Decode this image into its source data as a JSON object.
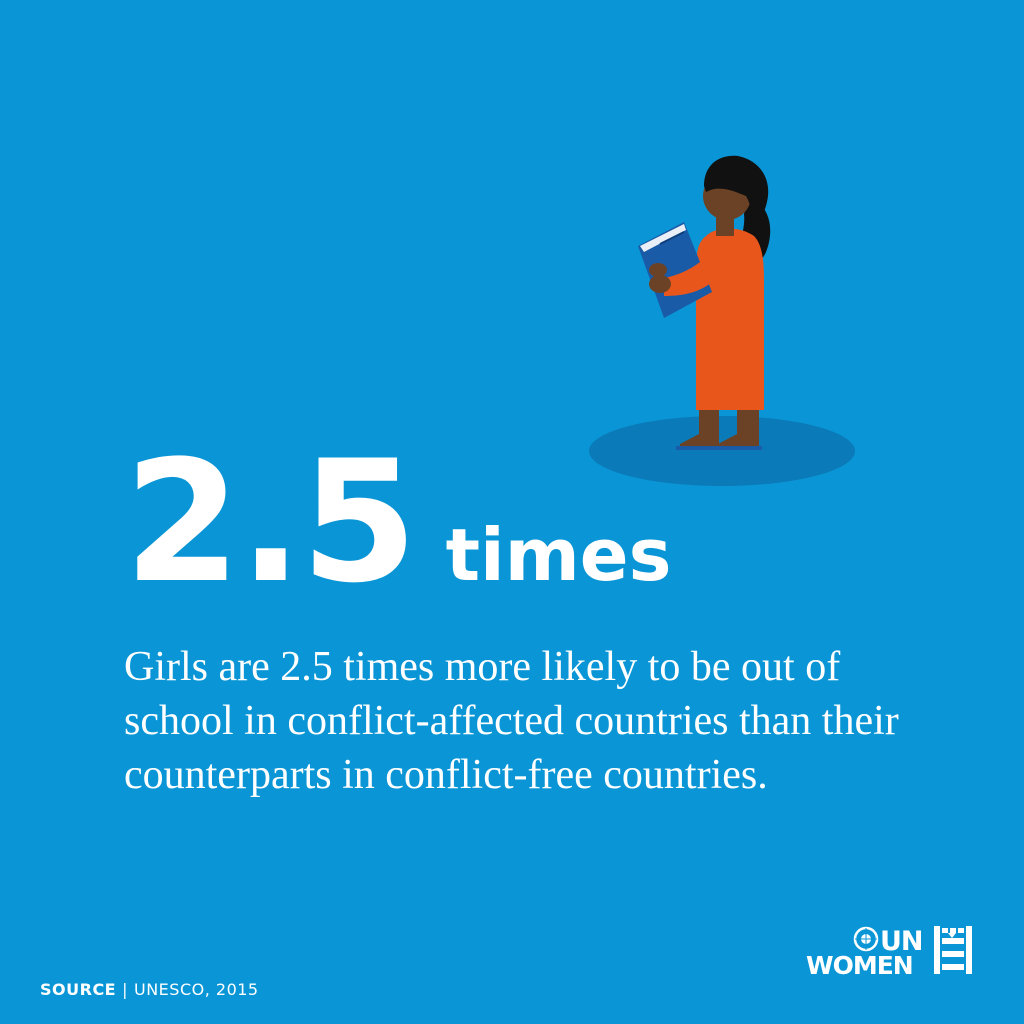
{
  "headline": {
    "number": "2.5",
    "unit": "times"
  },
  "description": "Girls are 2.5 times more likely to be out of school in conflict-affected countries than their counterparts in conflict-free countries.",
  "source": {
    "label": "SOURCE",
    "separator": "|",
    "text": "UNESCO, 2015"
  },
  "logo": {
    "line1": "UN",
    "line2": "WOMEN"
  },
  "colors": {
    "background": "#0A96D6",
    "shadow": "#0A7AB8",
    "dress": "#E8561C",
    "skin": "#6B4226",
    "hair": "#111111",
    "book": "#1A5BA8",
    "text": "#FFFFFF"
  },
  "icons": [
    "girl-reading-book-illustration",
    "un-emblem-icon"
  ]
}
